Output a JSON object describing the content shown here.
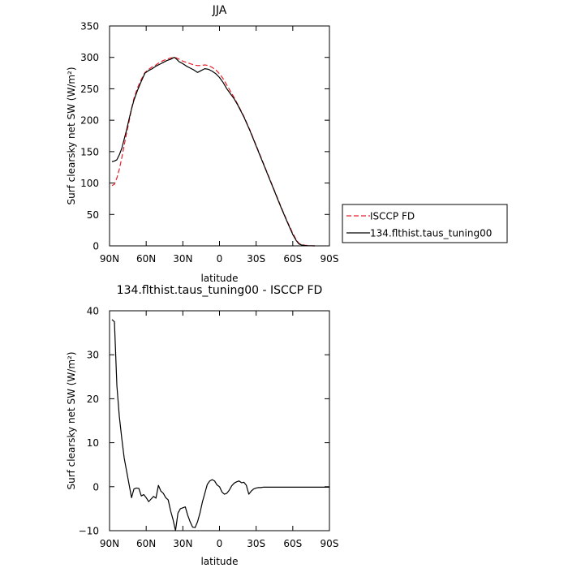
{
  "chart_data": [
    {
      "type": "line",
      "title": "JJA",
      "xlabel": "latitude",
      "ylabel": "Surf clearsky net SW (W/m²)",
      "xlim": [
        90,
        -90
      ],
      "ylim": [
        0,
        350
      ],
      "x_ticks": [
        90,
        60,
        30,
        0,
        -30,
        -60,
        -90
      ],
      "x_tick_labels": [
        "90N",
        "60N",
        "30N",
        "0",
        "30S",
        "60S",
        "90S"
      ],
      "y_ticks": [
        0,
        50,
        100,
        150,
        200,
        250,
        300,
        350
      ],
      "y_tick_labels": [
        "0",
        "50",
        "100",
        "150",
        "200",
        "250",
        "300",
        "350"
      ],
      "grid": false,
      "legend_position": "right, outside plot",
      "series": [
        {
          "name": "ISCCP FD",
          "color": "#e8202a",
          "dash": "dashed",
          "x": [
            88,
            86,
            84,
            82,
            80,
            78,
            76,
            74,
            72,
            70,
            67,
            64,
            61,
            58,
            55,
            52,
            49,
            46,
            43,
            40,
            37,
            35,
            33,
            30,
            27,
            24,
            21,
            18,
            15,
            12,
            9,
            6,
            3,
            0,
            -3,
            -6,
            -9,
            -12,
            -15,
            -20,
            -25,
            -30,
            -35,
            -40,
            -45,
            -50,
            -55,
            -60,
            -63,
            -65,
            -67,
            -70,
            -72,
            -75,
            -78
          ],
          "y": [
            96,
            98,
            108,
            122,
            140,
            160,
            180,
            198,
            218,
            235,
            252,
            265,
            276,
            281,
            285,
            288,
            292,
            295,
            297,
            299,
            300,
            299,
            297,
            294,
            292,
            290,
            288,
            287,
            287,
            288,
            287,
            284,
            280,
            274,
            266,
            256,
            246,
            236,
            225,
            206,
            184,
            160,
            136,
            112,
            88,
            64,
            41,
            20,
            9,
            4,
            2,
            1,
            0.5,
            0.2,
            0
          ]
        },
        {
          "name": "134.flthist.taus_tuning00",
          "color": "#000000",
          "dash": "solid",
          "x": [
            88,
            86,
            84,
            82,
            80,
            78,
            76,
            74,
            72,
            70,
            67,
            64,
            61,
            58,
            55,
            52,
            49,
            46,
            43,
            40,
            37,
            35,
            33,
            30,
            27,
            24,
            21,
            18,
            15,
            12,
            9,
            6,
            3,
            0,
            -3,
            -6,
            -9,
            -12,
            -15,
            -20,
            -25,
            -30,
            -35,
            -40,
            -45,
            -50,
            -55,
            -60,
            -63,
            -65,
            -67,
            -70,
            -72,
            -75,
            -78
          ],
          "y": [
            134,
            135,
            137,
            145,
            155,
            170,
            185,
            202,
            218,
            232,
            248,
            262,
            275,
            279,
            282,
            286,
            289,
            292,
            295,
            297,
            300,
            297,
            293,
            290,
            286,
            283,
            280,
            276,
            279,
            282,
            281,
            278,
            274,
            268,
            260,
            250,
            242,
            234,
            224,
            205,
            183,
            159,
            135,
            111,
            87,
            63,
            40,
            18,
            8,
            3,
            1.5,
            0.5,
            0.2,
            0.1,
            0
          ]
        }
      ]
    },
    {
      "type": "line",
      "title": "134.flthist.taus_tuning00 - ISCCP FD",
      "xlabel": "latitude",
      "ylabel": "Surf clearsky net SW (W/m²)",
      "xlim": [
        90,
        -90
      ],
      "ylim": [
        -10,
        40
      ],
      "x_ticks": [
        90,
        60,
        30,
        0,
        -30,
        -60,
        -90
      ],
      "x_tick_labels": [
        "90N",
        "60N",
        "30N",
        "0",
        "30S",
        "60S",
        "90S"
      ],
      "y_ticks": [
        -10,
        0,
        10,
        20,
        30,
        40
      ],
      "y_tick_labels": [
        "−10",
        "0",
        "10",
        "20",
        "30",
        "40"
      ],
      "grid": false,
      "series": [
        {
          "color": "#000000",
          "dash": "solid",
          "x": [
            88,
            86,
            84,
            82,
            80,
            78,
            76,
            74,
            72,
            70,
            68,
            66,
            64,
            62,
            60,
            58,
            56,
            54,
            52,
            50,
            48,
            46,
            44,
            42,
            40,
            38,
            36,
            34,
            32,
            30,
            28,
            26,
            24,
            22,
            20,
            18,
            16,
            14,
            12,
            10,
            8,
            6,
            4,
            2,
            0,
            -2,
            -4,
            -6,
            -8,
            -10,
            -12,
            -14,
            -16,
            -18,
            -20,
            -22,
            -24,
            -26,
            -28,
            -30,
            -32,
            -34,
            -36,
            -38,
            -40,
            -42,
            -44,
            -46,
            -48,
            -50,
            -52,
            -54,
            -56,
            -58,
            -60,
            -62,
            -64,
            -66,
            -68,
            -70,
            -72,
            -74,
            -76,
            -78,
            -80,
            -82,
            -84,
            -86,
            -88,
            -90
          ],
          "y": [
            38,
            37.5,
            23,
            16,
            11,
            6.5,
            3.5,
            0.5,
            -2.5,
            -0.5,
            -0.3,
            -0.4,
            -2.1,
            -1.8,
            -2.5,
            -3.4,
            -2.8,
            -2.2,
            -2.6,
            0.3,
            -1,
            -1.5,
            -2.5,
            -3,
            -5.5,
            -7.5,
            -10,
            -6,
            -5,
            -4.8,
            -4.6,
            -6.5,
            -8,
            -9.2,
            -9.3,
            -8,
            -6,
            -3.5,
            -1.5,
            0.5,
            1.3,
            1.6,
            1.3,
            0.4,
            0,
            -1.2,
            -1.7,
            -1.5,
            -0.8,
            0.2,
            0.8,
            1.1,
            1.3,
            0.9,
            1.0,
            0.3,
            -1.7,
            -1.0,
            -0.5,
            -0.3,
            -0.2,
            -0.2,
            -0.1,
            -0.1,
            -0.1,
            -0.1,
            -0.1,
            -0.1,
            -0.1,
            -0.1,
            -0.1,
            -0.1,
            -0.1,
            -0.1,
            -0.1,
            -0.1,
            -0.1,
            -0.1,
            -0.1,
            -0.1,
            -0.1,
            -0.1,
            -0.1,
            -0.1,
            -0.1,
            -0.1,
            -0.1,
            -0.1,
            -0.1,
            -0.1
          ]
        }
      ]
    }
  ]
}
